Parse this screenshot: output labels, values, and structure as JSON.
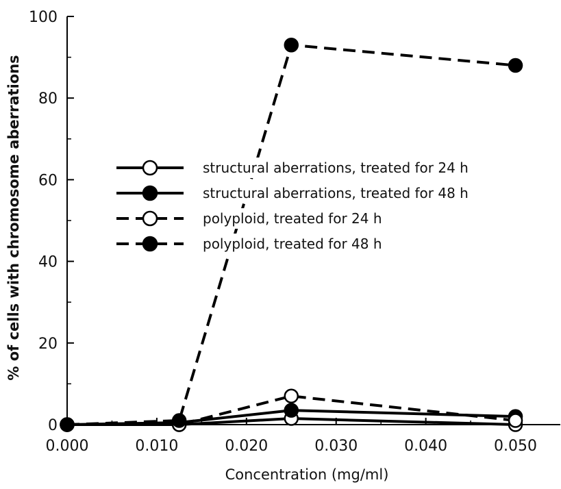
{
  "chart_data": {
    "type": "line",
    "xlabel": "Concentration (mg/ml)",
    "ylabel": "% of cells with chromosome aberrations",
    "xlim": [
      0,
      0.055
    ],
    "ylim": [
      0,
      100
    ],
    "x_ticks": [
      0,
      0.01,
      0.02,
      0.03,
      0.04,
      0.05
    ],
    "x_tick_labels": [
      "0.000",
      "0.010",
      "0.020",
      "0.030",
      "0.040",
      "0.050"
    ],
    "y_ticks": [
      0,
      20,
      40,
      60,
      80,
      100
    ],
    "y_tick_labels": [
      "0",
      "20",
      "40",
      "60",
      "80",
      "100"
    ],
    "legend_position": "center-left",
    "x": [
      0,
      0.0125,
      0.025,
      0.05
    ],
    "series": [
      {
        "name": "structural aberrations, treated for 24 h",
        "values": [
          0,
          0,
          1.5,
          0
        ],
        "line": "solid",
        "marker": "open"
      },
      {
        "name": "structural aberrations, treated for 48 h",
        "values": [
          0,
          0.5,
          3.5,
          2
        ],
        "line": "solid",
        "marker": "filled"
      },
      {
        "name": "polyploid, treated for 24 h",
        "values": [
          0,
          0,
          7,
          1
        ],
        "line": "dashed",
        "marker": "open"
      },
      {
        "name": "polyploid, treated for 48 h",
        "values": [
          0,
          1,
          93,
          88
        ],
        "line": "dashed",
        "marker": "filled"
      }
    ]
  }
}
